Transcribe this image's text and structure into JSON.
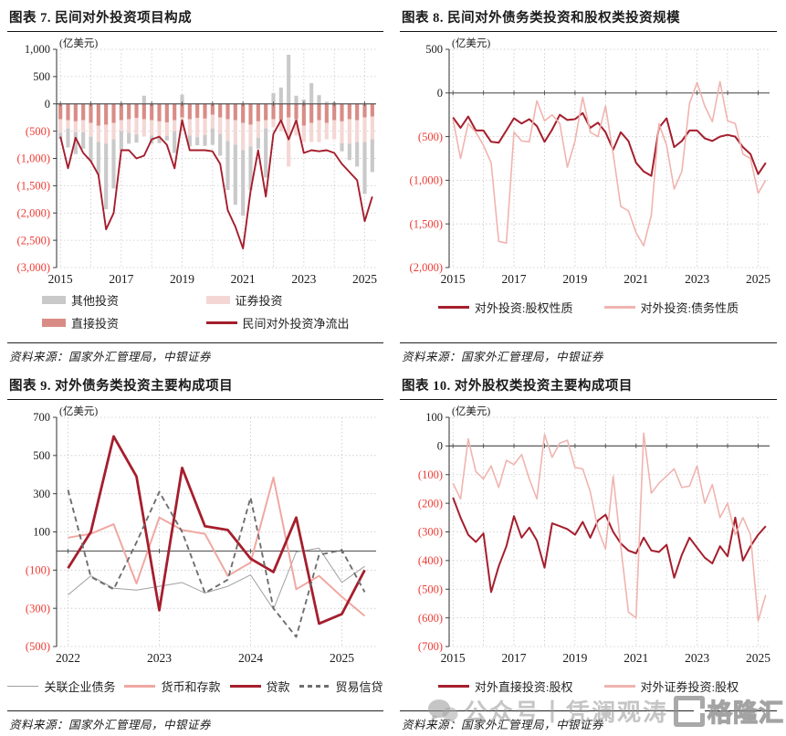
{
  "page": {
    "watermark": {
      "wechat_icon": "wechat-bubbles-icon",
      "prefix": "公众号丨",
      "account": "凭澜观涛",
      "logo_icon": "G",
      "logo_text": "格隆汇"
    }
  },
  "colors": {
    "dark_red": "#A51E2D",
    "pink_line": "#F0B4AF",
    "bar_pink": "#F4D7D4",
    "bar_red": "#D98C86",
    "bar_gray": "#C9C9C9",
    "gray_line": "#A0A0A0",
    "dash_gray": "#6E6E6E",
    "neg_label": "#EE3B33",
    "grid": "#C8C8C8",
    "zero_line": "#595959",
    "axis": "#404040"
  },
  "chart_data": [
    {
      "id": "chart7",
      "type": "bar",
      "title": "图表 7. 民间对外投资项目构成",
      "unit": "(亿美元)",
      "source": "资料来源：国家外汇管理局，中银证券",
      "ylim": [
        -3000,
        1000
      ],
      "ystep": 500,
      "x_start": "2015Q1",
      "x_end": "2025Q2",
      "xticks": [
        {
          "label": "2015",
          "index": 0
        },
        {
          "label": "2017",
          "index": 8
        },
        {
          "label": "2019",
          "index": 16
        },
        {
          "label": "2021",
          "index": 24
        },
        {
          "label": "2023",
          "index": 32
        },
        {
          "label": "2025",
          "index": 40
        }
      ],
      "grid_x_every": 4,
      "series": [
        {
          "name": "直接投资",
          "type": "bar",
          "color": "#D98C86",
          "values": [
            -280,
            -300,
            -320,
            -300,
            -350,
            -400,
            -380,
            -350,
            -300,
            -280,
            -260,
            -280,
            -300,
            -320,
            -340,
            -300,
            -250,
            -280,
            -260,
            -270,
            -200,
            -250,
            -280,
            -300,
            -350,
            -380,
            -320,
            -300,
            -280,
            -300,
            -250,
            -280,
            -400,
            -350,
            -300,
            -350,
            -300,
            -320,
            -280,
            -300,
            -250,
            -230
          ]
        },
        {
          "name": "证券投资",
          "type": "bar",
          "color": "#F4D7D4",
          "values": [
            -250,
            -150,
            -200,
            -220,
            -250,
            -300,
            -350,
            -300,
            -200,
            -250,
            -300,
            -320,
            -280,
            -300,
            -250,
            -200,
            -250,
            -300,
            -350,
            -300,
            -250,
            -300,
            -400,
            -450,
            -500,
            -400,
            -300,
            -150,
            -150,
            -200,
            -900,
            -300,
            -300,
            -350,
            -400,
            -300,
            -350,
            -400,
            -450,
            -400,
            -450,
            -420
          ]
        },
        {
          "name": "其他投资",
          "type": "bar",
          "color": "#C9C9C9",
          "values": [
            -120,
            -350,
            -400,
            -300,
            -450,
            -600,
            -1200,
            -900,
            -350,
            -200,
            -150,
            150,
            -150,
            -100,
            -80,
            -400,
            170,
            -200,
            -150,
            -200,
            -300,
            -400,
            -900,
            -1100,
            -1200,
            -800,
            -200,
            -900,
            200,
            300,
            900,
            150,
            80,
            380,
            160,
            40,
            30,
            -150,
            -300,
            -450,
            -950,
            -600
          ]
        },
        {
          "name": "民间对外投资净流出",
          "type": "line",
          "color": "#A51E2D",
          "width": 1.9,
          "values": [
            -600,
            -1180,
            -620,
            -900,
            -1050,
            -1300,
            -2300,
            -2000,
            -850,
            -850,
            -1000,
            -950,
            -650,
            -600,
            -750,
            -1180,
            -300,
            -850,
            -850,
            -850,
            -870,
            -1100,
            -1950,
            -2250,
            -2650,
            -1600,
            -850,
            -1700,
            -550,
            -300,
            -650,
            -300,
            -900,
            -850,
            -870,
            -850,
            -900,
            -1100,
            -1250,
            -1400,
            -2150,
            -1700
          ]
        }
      ],
      "legend": {
        "layout": "grid2",
        "items": [
          {
            "label": "其他投资",
            "swatch": "box",
            "color": "#C9C9C9"
          },
          {
            "label": "证券投资",
            "swatch": "box",
            "color": "#F4D7D4"
          },
          {
            "label": "直接投资",
            "swatch": "box",
            "color": "#D98C86"
          },
          {
            "label": "民间对外投资净流出",
            "swatch": "line",
            "color": "#A51E2D",
            "weight": 2.2
          }
        ]
      }
    },
    {
      "id": "chart8",
      "type": "line",
      "title": "图表 8. 民间对外债务类投资和股权类投资规模",
      "unit": "(亿美元)",
      "source": "资料来源：国家外汇管理局，中银证券",
      "ylim": [
        -2000,
        500
      ],
      "ystep": 500,
      "x_start": "2015Q1",
      "x_end": "2025Q2",
      "xticks": [
        {
          "label": "2015",
          "index": 0
        },
        {
          "label": "2017",
          "index": 8
        },
        {
          "label": "2019",
          "index": 16
        },
        {
          "label": "2021",
          "index": 24
        },
        {
          "label": "2023",
          "index": 32
        },
        {
          "label": "2025",
          "index": 40
        }
      ],
      "grid_x_every": 4,
      "series": [
        {
          "name": "对外投资:股权性质",
          "type": "line",
          "color": "#A51E2D",
          "width": 2.0,
          "values": [
            -280,
            -400,
            -270,
            -430,
            -430,
            -560,
            -570,
            -430,
            -290,
            -350,
            -300,
            -380,
            -560,
            -420,
            -250,
            -310,
            -300,
            -230,
            -400,
            -340,
            -450,
            -650,
            -450,
            -550,
            -800,
            -900,
            -950,
            -400,
            -290,
            -620,
            -550,
            -430,
            -430,
            -520,
            -550,
            -500,
            -480,
            -500,
            -620,
            -700,
            -930,
            -800
          ]
        },
        {
          "name": "对外投资:债务性质",
          "type": "line",
          "color": "#F0B4AF",
          "width": 1.6,
          "values": [
            -300,
            -750,
            -350,
            -450,
            -600,
            -800,
            -1700,
            -1720,
            -450,
            -550,
            -560,
            -90,
            -320,
            -250,
            -350,
            -850,
            -550,
            -50,
            -450,
            -500,
            -150,
            -700,
            -1300,
            -1350,
            -1600,
            -1750,
            -1400,
            -350,
            -600,
            -1100,
            -900,
            -120,
            120,
            -150,
            -330,
            130,
            -320,
            -350,
            -700,
            -750,
            -1150,
            -1000
          ]
        }
      ],
      "legend": {
        "layout": "row",
        "items": [
          {
            "label": "对外投资:股权性质",
            "swatch": "line",
            "color": "#A51E2D",
            "weight": 2.2
          },
          {
            "label": "对外投资:债务性质",
            "swatch": "line",
            "color": "#F0B4AF",
            "weight": 2.2
          }
        ]
      }
    },
    {
      "id": "chart9",
      "type": "line",
      "title": "图表 9. 对外债务类投资主要构成项目",
      "unit": "(亿美元)",
      "source": "资料来源：国家外汇管理局，中银证券",
      "ylim": [
        -500,
        700
      ],
      "ystep": 200,
      "x_start": "2022Q1",
      "x_end": "2025Q2",
      "xticks": [
        {
          "label": "2022",
          "index": 0
        },
        {
          "label": "2023",
          "index": 4
        },
        {
          "label": "2024",
          "index": 8
        },
        {
          "label": "2025",
          "index": 12
        }
      ],
      "grid_x_every": 4,
      "series": [
        {
          "name": "关联企业债务",
          "type": "line",
          "color": "#A0A0A0",
          "width": 1.0,
          "values": [
            -230,
            -130,
            -195,
            -205,
            -185,
            -165,
            -220,
            -185,
            -125,
            -305,
            -5,
            15,
            -165,
            -80
          ]
        },
        {
          "name": "货币和存款",
          "type": "line",
          "color": "#F0A8A2",
          "width": 2.0,
          "values": [
            70,
            90,
            140,
            -170,
            175,
            110,
            90,
            -130,
            -60,
            385,
            -200,
            -130,
            -240,
            -340
          ]
        },
        {
          "name": "贷款",
          "type": "line",
          "color": "#A51E2D",
          "width": 2.8,
          "values": [
            -90,
            100,
            600,
            390,
            -310,
            435,
            130,
            110,
            -40,
            -110,
            175,
            -380,
            -330,
            -100
          ]
        },
        {
          "name": "贸易信贷",
          "type": "line",
          "color": "#6E6E6E",
          "width": 1.9,
          "dash": "6 4",
          "values": [
            320,
            -135,
            -200,
            45,
            310,
            100,
            -220,
            -150,
            280,
            -300,
            -450,
            -20,
            5,
            -215
          ]
        }
      ],
      "legend": {
        "layout": "row-tight",
        "items": [
          {
            "label": "关联企业债务",
            "swatch": "line",
            "color": "#A0A0A0",
            "weight": 1.2
          },
          {
            "label": "货币和存款",
            "swatch": "line",
            "color": "#F0A8A2",
            "weight": 2.2
          },
          {
            "label": "贷款",
            "swatch": "line",
            "color": "#A51E2D",
            "weight": 3
          },
          {
            "label": "贸易信贷",
            "swatch": "dash",
            "color": "#6E6E6E",
            "weight": 2.2
          }
        ]
      }
    },
    {
      "id": "chart10",
      "type": "line",
      "title": "图表 10. 对外股权类投资主要构成项目",
      "unit": "(亿美元)",
      "source": "资料来源：国家外汇管理局，中银证券",
      "ylim": [
        -700,
        100
      ],
      "ystep": 100,
      "x_start": "2015Q1",
      "x_end": "2025Q2",
      "xticks": [
        {
          "label": "2015",
          "index": 0
        },
        {
          "label": "2017",
          "index": 8
        },
        {
          "label": "2019",
          "index": 16
        },
        {
          "label": "2021",
          "index": 24
        },
        {
          "label": "2023",
          "index": 32
        },
        {
          "label": "2025",
          "index": 40
        }
      ],
      "grid_x_every": 4,
      "series": [
        {
          "name": "对外直接投资:股权",
          "type": "line",
          "color": "#A51E2D",
          "width": 2.0,
          "values": [
            -180,
            -250,
            -310,
            -335,
            -305,
            -510,
            -420,
            -350,
            -245,
            -320,
            -285,
            -330,
            -425,
            -270,
            -280,
            -290,
            -310,
            -265,
            -320,
            -260,
            -240,
            -300,
            -340,
            -365,
            -375,
            -320,
            -365,
            -370,
            -345,
            -460,
            -380,
            -320,
            -355,
            -390,
            -410,
            -350,
            -385,
            -250,
            -400,
            -350,
            -310,
            -280
          ]
        },
        {
          "name": "对外证券投资:股权",
          "type": "line",
          "color": "#F0B4AF",
          "width": 1.6,
          "values": [
            -130,
            -185,
            25,
            -90,
            -115,
            -70,
            -145,
            -50,
            -65,
            -30,
            -115,
            -185,
            40,
            -40,
            10,
            20,
            -75,
            -80,
            -160,
            -290,
            -360,
            -105,
            -350,
            -580,
            -600,
            45,
            -165,
            -130,
            -105,
            -80,
            -145,
            -140,
            -70,
            -200,
            -135,
            -250,
            -200,
            -310,
            -250,
            -310,
            -610,
            -520
          ]
        }
      ],
      "legend": {
        "layout": "row",
        "items": [
          {
            "label": "对外直接投资:股权",
            "swatch": "line",
            "color": "#A51E2D",
            "weight": 2.2
          },
          {
            "label": "对外证券投资:股权",
            "swatch": "line",
            "color": "#F0B4AF",
            "weight": 2.2
          }
        ]
      }
    }
  ]
}
